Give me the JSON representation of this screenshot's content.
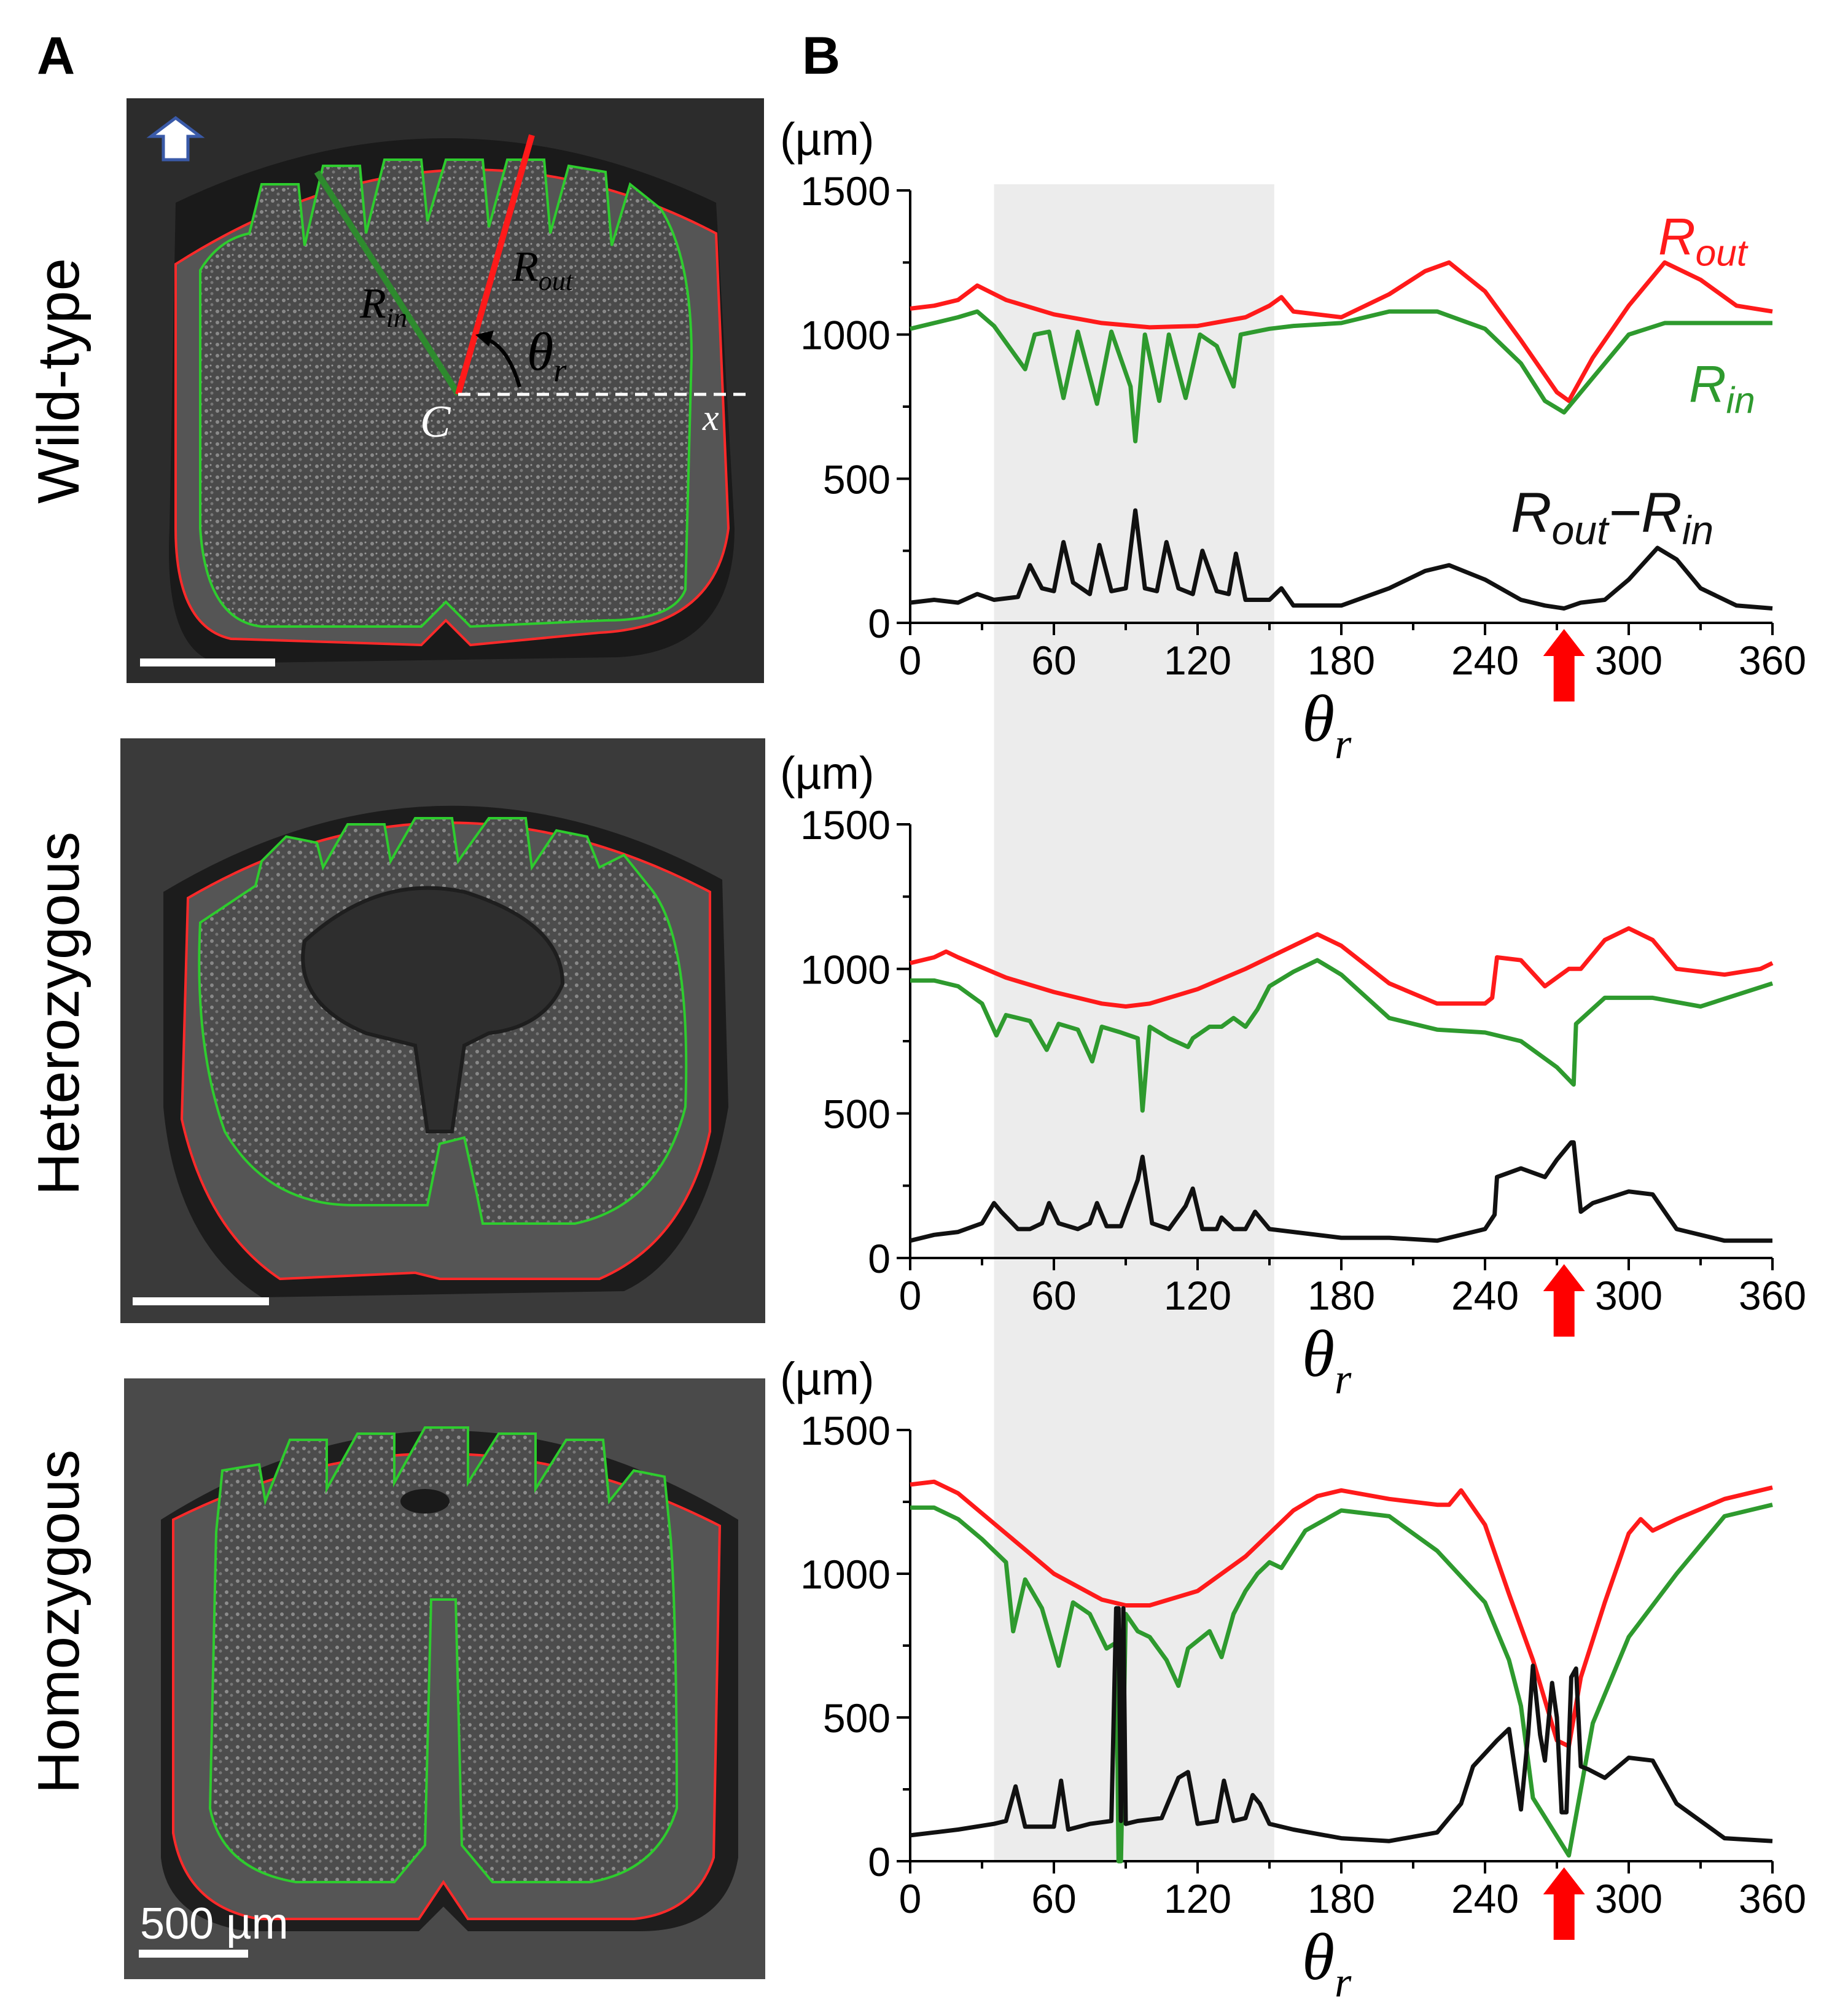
{
  "panels": {
    "a_label": "A",
    "b_label": "B"
  },
  "rows": [
    {
      "genotype": "Wild-type"
    },
    {
      "genotype": "Heterozygous"
    },
    {
      "genotype": "Homozygous"
    }
  ],
  "scale_bar_label": "500 µm",
  "scheme_labels": {
    "r_in": "R",
    "r_in_sub": "in",
    "r_out": "R",
    "r_out_sub": "out",
    "theta": "θ",
    "theta_sub": "r",
    "center": "C",
    "axis": "x"
  },
  "colors": {
    "r_out": "#ff1a1a",
    "r_in": "#2e9a2e",
    "diff": "#111111",
    "shade": "#ececec",
    "arrow": "#ff0000",
    "micro_bg": "#2a2a2a"
  },
  "chart_data": [
    {
      "type": "line",
      "ylabel": "(µm)",
      "xlabel": "θr",
      "xlim": [
        0,
        360
      ],
      "ylim": [
        0,
        1500
      ],
      "xticks": [
        "0",
        "60",
        "120",
        "180",
        "240",
        "300",
        "360"
      ],
      "yticks": [
        "0",
        "500",
        "1000",
        "1500"
      ],
      "shaded_range": [
        35,
        152
      ],
      "arrow_x": 273,
      "series": [
        {
          "name": "Rout",
          "label_main": "R",
          "label_sub": "out",
          "color": "red",
          "x": [
            0,
            10,
            20,
            28,
            40,
            60,
            80,
            100,
            120,
            140,
            150,
            155,
            160,
            180,
            200,
            215,
            225,
            240,
            255,
            270,
            275,
            285,
            300,
            315,
            330,
            345,
            360
          ],
          "y": [
            1090,
            1100,
            1120,
            1170,
            1120,
            1070,
            1040,
            1025,
            1030,
            1060,
            1100,
            1130,
            1080,
            1060,
            1140,
            1220,
            1250,
            1150,
            980,
            800,
            770,
            920,
            1100,
            1250,
            1190,
            1100,
            1080
          ]
        },
        {
          "name": "Rin",
          "label_main": "R",
          "label_sub": "in",
          "color": "green",
          "x": [
            0,
            10,
            20,
            28,
            35,
            48,
            52,
            58,
            64,
            70,
            78,
            84,
            92,
            94,
            98,
            104,
            108,
            115,
            121,
            128,
            135,
            138,
            150,
            160,
            180,
            200,
            220,
            240,
            255,
            265,
            273,
            280,
            290,
            300,
            315,
            330,
            345,
            360
          ],
          "y": [
            1020,
            1040,
            1060,
            1080,
            1030,
            880,
            1000,
            1010,
            780,
            1010,
            760,
            1010,
            820,
            630,
            1000,
            770,
            1000,
            780,
            1000,
            960,
            820,
            1000,
            1020,
            1030,
            1040,
            1080,
            1080,
            1020,
            900,
            770,
            730,
            800,
            900,
            1000,
            1040,
            1040,
            1040,
            1040
          ]
        },
        {
          "name": "Rout−Rin",
          "label_main": "R",
          "label_sub": "out",
          "label_mid": "−R",
          "label_sub2": "in",
          "color": "black",
          "x": [
            0,
            10,
            20,
            28,
            35,
            45,
            50,
            55,
            60,
            64,
            68,
            75,
            79,
            84,
            90,
            94,
            98,
            103,
            107,
            112,
            118,
            122,
            128,
            133,
            136,
            140,
            150,
            155,
            160,
            180,
            200,
            215,
            225,
            240,
            255,
            265,
            273,
            280,
            290,
            300,
            312,
            320,
            330,
            345,
            360
          ],
          "y": [
            70,
            80,
            70,
            100,
            80,
            90,
            200,
            120,
            110,
            280,
            140,
            100,
            270,
            110,
            120,
            390,
            120,
            110,
            280,
            120,
            100,
            250,
            110,
            100,
            240,
            80,
            80,
            120,
            60,
            60,
            120,
            180,
            200,
            150,
            80,
            60,
            50,
            70,
            80,
            150,
            260,
            220,
            120,
            60,
            50
          ]
        }
      ]
    },
    {
      "type": "line",
      "ylabel": "(µm)",
      "xlabel": "θr",
      "xlim": [
        0,
        360
      ],
      "ylim": [
        0,
        1500
      ],
      "xticks": [
        "0",
        "60",
        "120",
        "180",
        "240",
        "300",
        "360"
      ],
      "yticks": [
        "0",
        "500",
        "1000",
        "1500"
      ],
      "shaded_range": [
        35,
        152
      ],
      "arrow_x": 273,
      "series": [
        {
          "name": "Rout",
          "color": "red",
          "x": [
            0,
            10,
            15,
            20,
            40,
            60,
            80,
            90,
            100,
            120,
            140,
            160,
            170,
            180,
            200,
            220,
            240,
            243,
            245,
            255,
            265,
            275,
            280,
            290,
            300,
            310,
            320,
            340,
            355,
            360
          ],
          "y": [
            1020,
            1040,
            1060,
            1040,
            970,
            920,
            880,
            870,
            880,
            930,
            1000,
            1080,
            1120,
            1080,
            950,
            880,
            880,
            900,
            1040,
            1030,
            940,
            1000,
            1000,
            1100,
            1140,
            1100,
            1000,
            980,
            1000,
            1020
          ]
        },
        {
          "name": "Rin",
          "color": "green",
          "x": [
            0,
            10,
            20,
            30,
            36,
            40,
            50,
            57,
            62,
            70,
            76,
            80,
            88,
            95,
            97,
            100,
            108,
            116,
            118,
            125,
            130,
            135,
            140,
            145,
            150,
            160,
            170,
            180,
            200,
            220,
            240,
            255,
            270,
            277,
            278,
            290,
            310,
            330,
            345,
            360
          ],
          "y": [
            960,
            960,
            940,
            880,
            770,
            840,
            820,
            720,
            810,
            790,
            680,
            800,
            780,
            760,
            510,
            800,
            760,
            730,
            760,
            800,
            800,
            830,
            800,
            860,
            940,
            990,
            1030,
            980,
            830,
            790,
            780,
            750,
            660,
            600,
            810,
            900,
            900,
            870,
            910,
            950
          ]
        },
        {
          "name": "Rout−Rin",
          "color": "black",
          "x": [
            0,
            10,
            20,
            30,
            35,
            38,
            45,
            50,
            55,
            58,
            62,
            70,
            75,
            78,
            82,
            88,
            95,
            97,
            101,
            108,
            115,
            118,
            122,
            128,
            130,
            135,
            140,
            144,
            150,
            160,
            180,
            200,
            220,
            240,
            244,
            245,
            255,
            265,
            270,
            276,
            277,
            280,
            285,
            300,
            310,
            320,
            340,
            360
          ],
          "y": [
            60,
            80,
            90,
            120,
            190,
            160,
            100,
            100,
            120,
            190,
            120,
            100,
            120,
            190,
            110,
            110,
            270,
            350,
            120,
            100,
            180,
            240,
            100,
            100,
            140,
            100,
            100,
            160,
            100,
            90,
            70,
            70,
            60,
            100,
            150,
            280,
            310,
            280,
            340,
            400,
            400,
            160,
            190,
            230,
            220,
            100,
            60,
            60
          ]
        }
      ]
    },
    {
      "type": "line",
      "ylabel": "(µm)",
      "xlabel": "θr",
      "xlim": [
        0,
        360
      ],
      "ylim": [
        0,
        1500
      ],
      "xticks": [
        "0",
        "60",
        "120",
        "180",
        "240",
        "300",
        "360"
      ],
      "yticks": [
        "0",
        "500",
        "1000",
        "1500"
      ],
      "shaded_range": [
        35,
        152
      ],
      "arrow_x": 273,
      "series": [
        {
          "name": "Rout",
          "color": "red",
          "x": [
            0,
            10,
            20,
            40,
            60,
            80,
            90,
            100,
            120,
            140,
            160,
            170,
            180,
            200,
            220,
            225,
            230,
            240,
            250,
            260,
            265,
            270,
            275,
            280,
            290,
            300,
            305,
            310,
            320,
            340,
            360
          ],
          "y": [
            1310,
            1320,
            1280,
            1140,
            1000,
            910,
            890,
            890,
            940,
            1060,
            1220,
            1270,
            1290,
            1260,
            1240,
            1240,
            1290,
            1170,
            930,
            700,
            560,
            420,
            400,
            640,
            900,
            1140,
            1190,
            1150,
            1190,
            1260,
            1300
          ]
        },
        {
          "name": "Rin",
          "color": "green",
          "x": [
            0,
            10,
            20,
            30,
            40,
            43,
            48,
            55,
            62,
            68,
            75,
            82,
            86,
            87,
            88,
            90,
            95,
            100,
            107,
            112,
            116,
            125,
            130,
            135,
            140,
            145,
            150,
            155,
            165,
            180,
            200,
            220,
            240,
            250,
            255,
            260,
            275,
            285,
            300,
            320,
            340,
            360
          ],
          "y": [
            1230,
            1230,
            1190,
            1120,
            1040,
            800,
            980,
            880,
            680,
            900,
            860,
            740,
            760,
            0,
            0,
            860,
            800,
            780,
            700,
            610,
            740,
            800,
            710,
            860,
            940,
            1000,
            1040,
            1020,
            1150,
            1220,
            1200,
            1080,
            900,
            700,
            540,
            220,
            20,
            480,
            780,
            1000,
            1200,
            1240
          ]
        },
        {
          "name": "Rout−Rin",
          "color": "black",
          "x": [
            0,
            10,
            20,
            35,
            40,
            44,
            48,
            55,
            60,
            63,
            66,
            75,
            84,
            86,
            87,
            88,
            89,
            90,
            95,
            105,
            112,
            116,
            120,
            128,
            131,
            135,
            140,
            143,
            146,
            150,
            160,
            180,
            200,
            220,
            230,
            235,
            245,
            250,
            255,
            258,
            260,
            263,
            265,
            268,
            270,
            272,
            274,
            276,
            278,
            280,
            283,
            290,
            300,
            310,
            320,
            340,
            360
          ],
          "y": [
            90,
            100,
            110,
            130,
            140,
            260,
            120,
            120,
            120,
            280,
            110,
            130,
            140,
            880,
            880,
            140,
            880,
            130,
            140,
            150,
            290,
            310,
            130,
            140,
            280,
            140,
            150,
            230,
            200,
            130,
            110,
            80,
            70,
            100,
            200,
            330,
            420,
            460,
            180,
            440,
            680,
            440,
            350,
            620,
            500,
            170,
            170,
            640,
            670,
            330,
            320,
            290,
            360,
            350,
            200,
            80,
            70
          ]
        }
      ]
    }
  ]
}
